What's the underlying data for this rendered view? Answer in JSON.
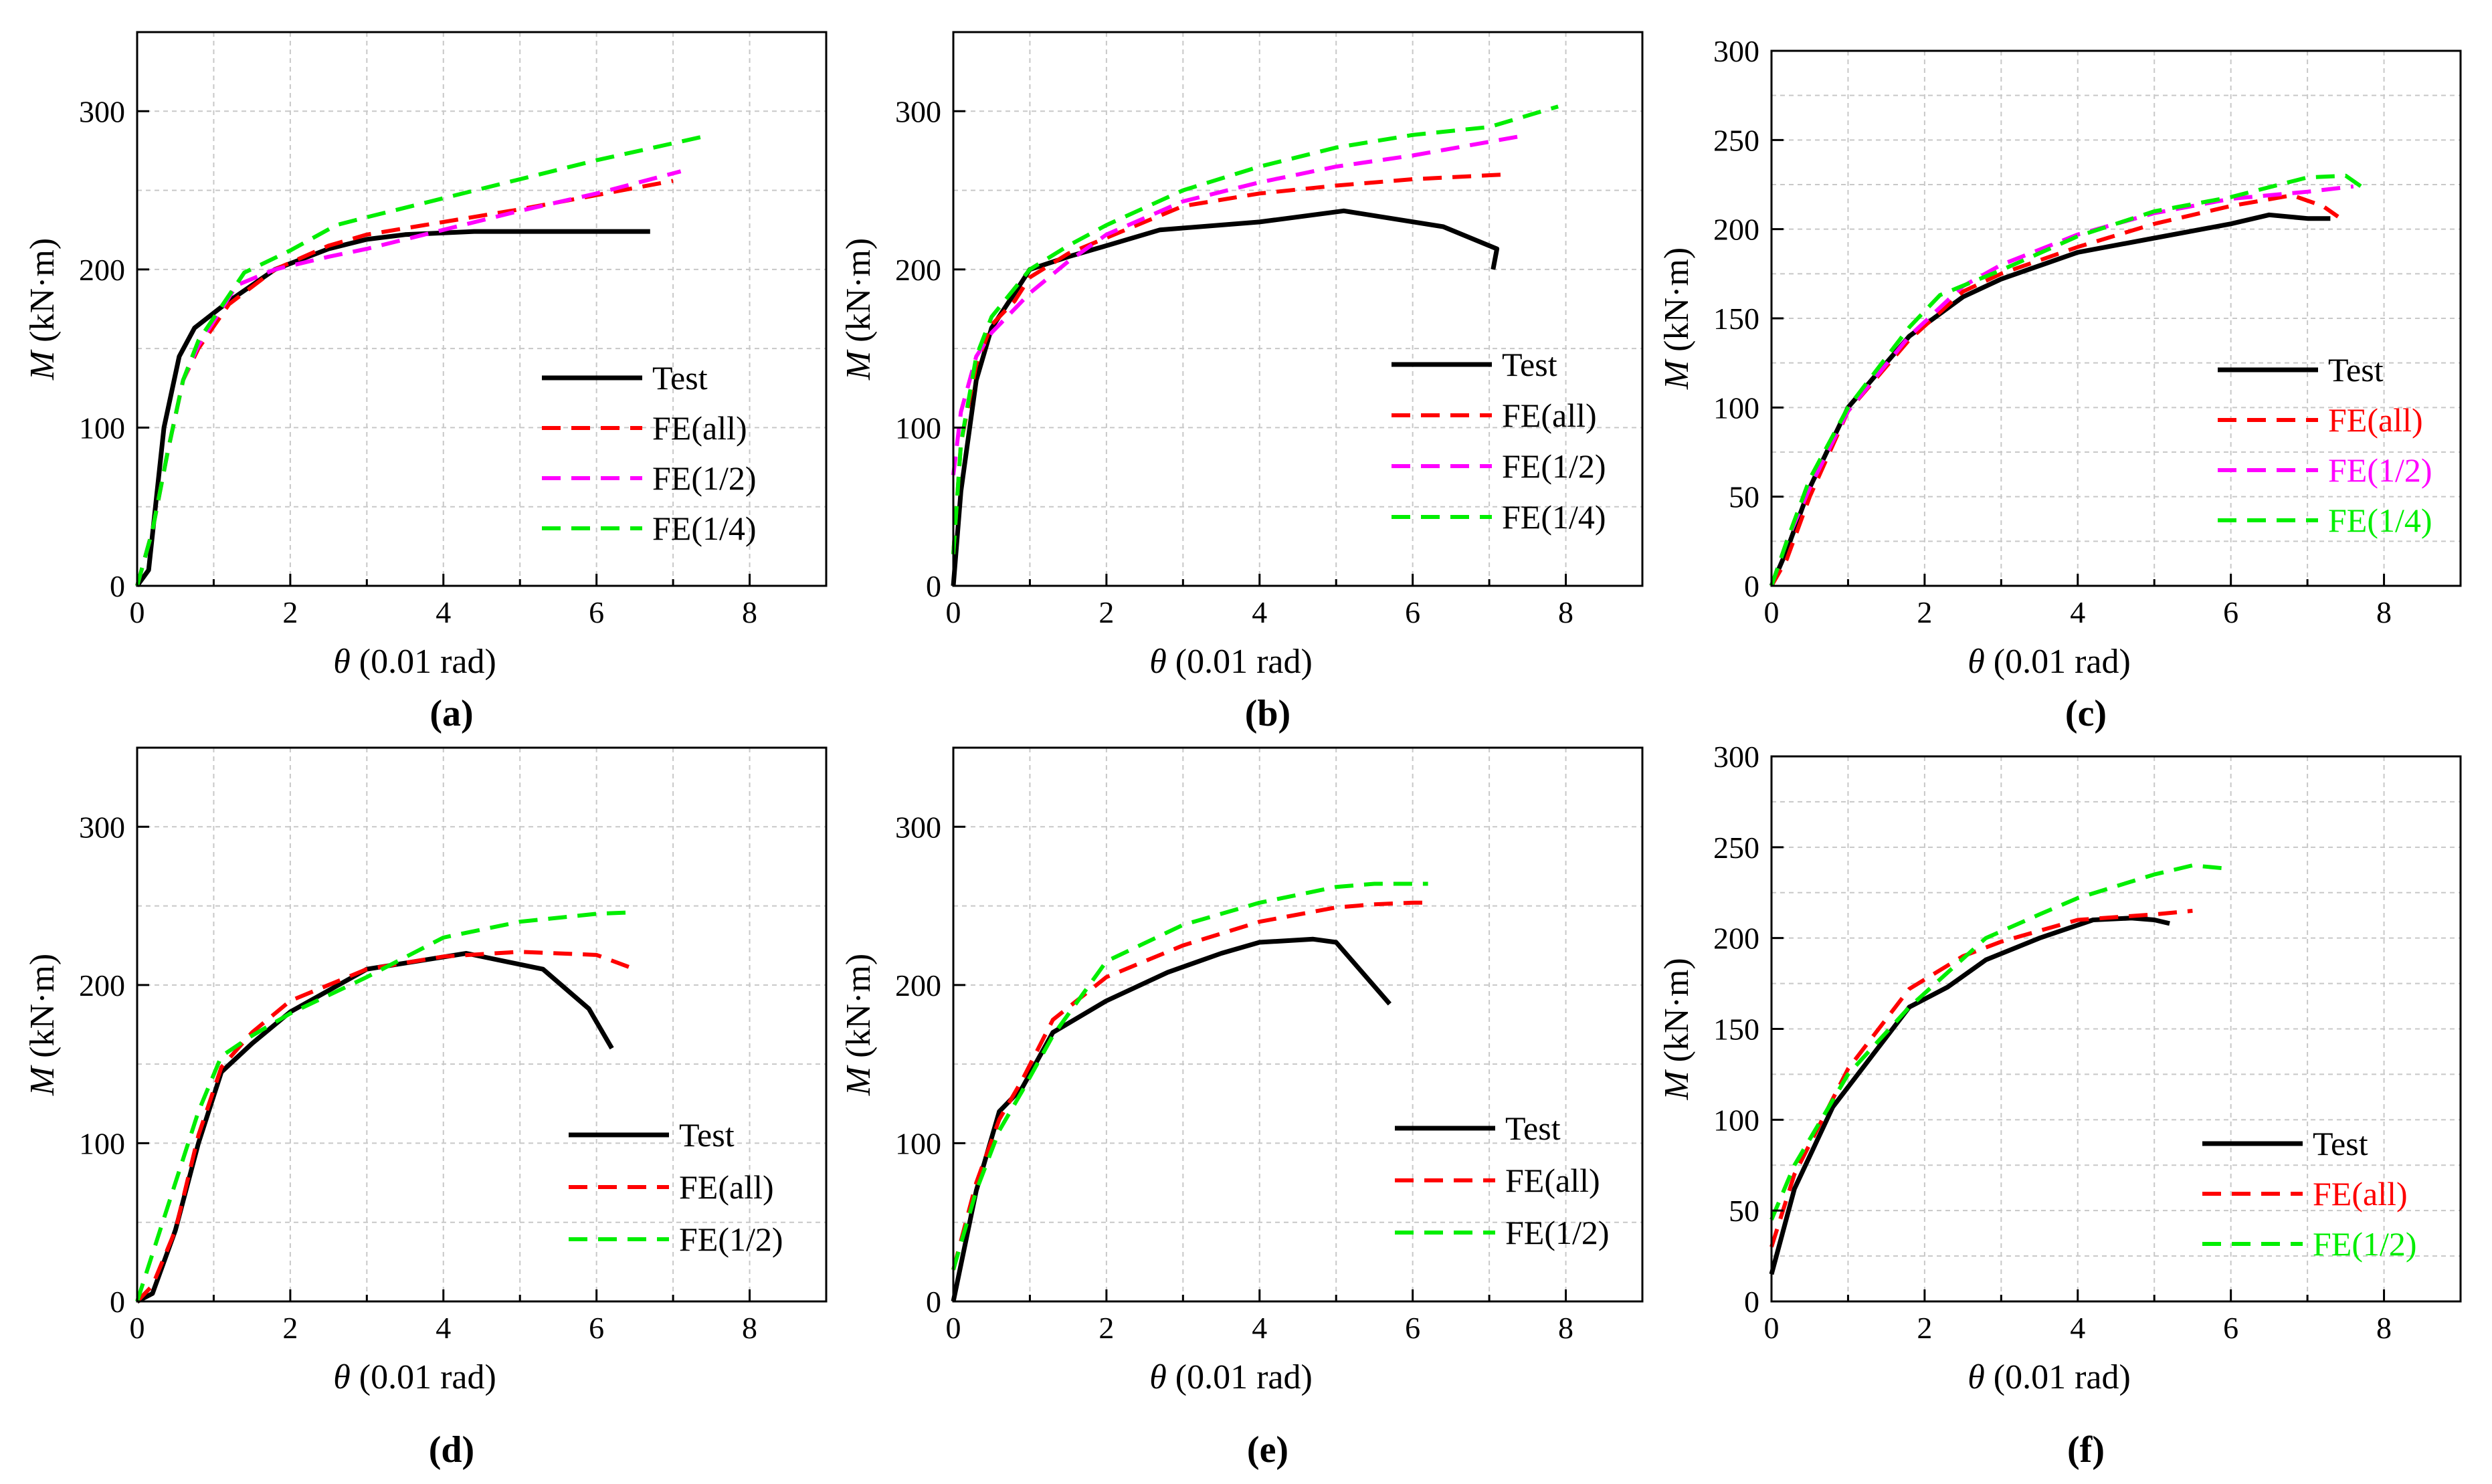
{
  "figure": {
    "xlabel_symbol": "θ",
    "xlabel_unit": "(0.01 rad)",
    "ylabel_symbol": "M",
    "ylabel_unit": "(kN·m)"
  },
  "colors": {
    "test": "#000000",
    "fe_all": "#ff0000",
    "fe_half": "#ff00ff",
    "fe_quarter": "#00ee00",
    "grid": "#c8c8c8"
  },
  "chart_data": [
    {
      "panel": "(a)",
      "type": "line",
      "xlabel": "θ (0.01 rad)",
      "ylabel": "M (kN·m)",
      "xlim": [
        0,
        9
      ],
      "ylim": [
        0,
        350
      ],
      "xticks": [
        0,
        2,
        4,
        6,
        8
      ],
      "yticks": [
        0,
        100,
        200,
        300
      ],
      "grid": true,
      "legend": "lower-right",
      "legend_colored_text": false,
      "series": [
        {
          "name": "Test",
          "style": "solid",
          "color": "#000000",
          "x": [
            0,
            0.15,
            0.35,
            0.55,
            0.75,
            1.2,
            1.8,
            2.5,
            3.0,
            3.5,
            4.4,
            6.0,
            6.7
          ],
          "y": [
            0,
            10,
            100,
            145,
            163,
            180,
            200,
            213,
            219,
            222,
            224,
            224,
            224
          ]
        },
        {
          "name": "FE(all)",
          "style": "dashed",
          "color": "#ff0000",
          "x": [
            0,
            0.2,
            0.4,
            0.6,
            0.8,
            1.2,
            1.8,
            2.5,
            3.0,
            4.0,
            5.0,
            6.0,
            7.0
          ],
          "y": [
            0,
            35,
            85,
            130,
            150,
            178,
            200,
            215,
            222,
            230,
            238,
            247,
            256
          ]
        },
        {
          "name": "FE(1/2)",
          "style": "dashed",
          "color": "#ff00ff",
          "x": [
            0,
            0.2,
            0.4,
            0.6,
            0.8,
            1.3,
            1.8,
            2.5,
            3.0,
            4.0,
            5.0,
            6.0,
            7.1
          ],
          "y": [
            0,
            35,
            85,
            130,
            152,
            190,
            200,
            208,
            213,
            225,
            237,
            248,
            262
          ]
        },
        {
          "name": "FE(1/4)",
          "style": "dashed",
          "color": "#00ee00",
          "x": [
            0,
            0.2,
            0.4,
            0.6,
            0.8,
            1.4,
            2.0,
            2.6,
            3.0,
            4.0,
            5.0,
            6.0,
            7.4
          ],
          "y": [
            0,
            35,
            85,
            130,
            155,
            198,
            212,
            228,
            233,
            245,
            257,
            269,
            284
          ]
        }
      ]
    },
    {
      "panel": "(b)",
      "type": "line",
      "xlabel": "θ (0.01 rad)",
      "ylabel": "M (kN·m)",
      "xlim": [
        0,
        9
      ],
      "ylim": [
        0,
        350
      ],
      "xticks": [
        0,
        2,
        4,
        6,
        8
      ],
      "yticks": [
        0,
        100,
        200,
        300
      ],
      "grid": true,
      "legend": "middle-right",
      "legend_colored_text": false,
      "series": [
        {
          "name": "Test",
          "style": "solid",
          "color": "#000000",
          "x": [
            0,
            0.1,
            0.3,
            0.5,
            0.8,
            1.0,
            1.5,
            2.0,
            2.7,
            4.0,
            5.1,
            6.4,
            7.1,
            7.05
          ],
          "y": [
            0,
            60,
            130,
            163,
            185,
            200,
            208,
            215,
            225,
            230,
            237,
            227,
            213,
            200
          ]
        },
        {
          "name": "FE(all)",
          "style": "dashed",
          "color": "#ff0000",
          "x": [
            0,
            0.1,
            0.3,
            0.5,
            0.8,
            1.0,
            1.5,
            2.0,
            3.0,
            4.0,
            5.0,
            6.0,
            7.2
          ],
          "y": [
            20,
            90,
            140,
            165,
            180,
            195,
            210,
            220,
            240,
            248,
            253,
            257,
            260
          ]
        },
        {
          "name": "FE(1/2)",
          "style": "dashed",
          "color": "#ff00ff",
          "x": [
            0,
            0.1,
            0.3,
            0.5,
            0.8,
            1.0,
            1.5,
            2.0,
            3.0,
            4.0,
            5.0,
            6.0,
            7.5
          ],
          "y": [
            70,
            110,
            145,
            160,
            175,
            185,
            205,
            222,
            243,
            255,
            265,
            272,
            285
          ]
        },
        {
          "name": "FE(1/4)",
          "style": "dashed",
          "color": "#00ee00",
          "x": [
            0,
            0.1,
            0.3,
            0.5,
            0.8,
            1.0,
            1.5,
            2.0,
            3.0,
            4.0,
            5.0,
            6.0,
            7.0,
            7.9
          ],
          "y": [
            20,
            90,
            145,
            170,
            188,
            200,
            215,
            228,
            250,
            265,
            277,
            285,
            290,
            303
          ]
        }
      ]
    },
    {
      "panel": "(c)",
      "type": "line",
      "xlabel": "θ (0.01 rad)",
      "ylabel": "M (kN·m)",
      "xlim": [
        0,
        9
      ],
      "ylim": [
        0,
        300
      ],
      "xticks": [
        0,
        2,
        4,
        6,
        8
      ],
      "yticks": [
        0,
        50,
        100,
        150,
        200,
        250,
        300
      ],
      "grid": true,
      "legend": "middle-right",
      "legend_colored_text": true,
      "series": [
        {
          "name": "Test",
          "style": "solid",
          "color": "#000000",
          "x": [
            0,
            0.2,
            0.5,
            1.0,
            1.8,
            2.5,
            3.0,
            4.0,
            5.0,
            6.0,
            6.5,
            7.0,
            7.3
          ],
          "y": [
            0,
            20,
            55,
            100,
            140,
            162,
            172,
            187,
            195,
            203,
            208,
            206,
            206
          ]
        },
        {
          "name": "FE(all)",
          "style": "dashed",
          "color": "#ff0000",
          "x": [
            0,
            0.2,
            0.5,
            1.0,
            1.8,
            2.5,
            3.0,
            4.0,
            5.0,
            6.0,
            6.8,
            7.2,
            7.4
          ],
          "y": [
            0,
            15,
            50,
            98,
            138,
            165,
            175,
            190,
            203,
            213,
            219,
            213,
            207
          ]
        },
        {
          "name": "FE(1/2)",
          "style": "dashed",
          "color": "#ff00ff",
          "x": [
            0,
            0.2,
            0.5,
            1.0,
            1.8,
            2.5,
            3.0,
            4.0,
            5.0,
            6.0,
            7.0,
            7.6
          ],
          "y": [
            0,
            25,
            55,
            98,
            140,
            168,
            180,
            197,
            209,
            217,
            221,
            224
          ]
        },
        {
          "name": "FE(1/4)",
          "style": "dashed",
          "color": "#00ee00",
          "x": [
            0,
            0.2,
            0.5,
            1.0,
            1.8,
            2.2,
            3.0,
            4.0,
            5.0,
            6.0,
            7.0,
            7.5,
            7.7
          ],
          "y": [
            0,
            25,
            60,
            100,
            145,
            163,
            177,
            196,
            210,
            218,
            229,
            230,
            224
          ]
        }
      ]
    },
    {
      "panel": "(d)",
      "type": "line",
      "xlabel": "θ (0.01 rad)",
      "ylabel": "M (kN·m)",
      "xlim": [
        0,
        9
      ],
      "ylim": [
        0,
        350
      ],
      "xticks": [
        0,
        2,
        4,
        6,
        8
      ],
      "yticks": [
        0,
        100,
        200,
        300
      ],
      "grid": true,
      "legend": "lower-right",
      "legend_colored_text": false,
      "series": [
        {
          "name": "Test",
          "style": "solid",
          "color": "#000000",
          "x": [
            0,
            0.2,
            0.5,
            0.8,
            1.1,
            1.5,
            2.0,
            3.0,
            4.3,
            5.3,
            5.9,
            6.2
          ],
          "y": [
            0,
            5,
            45,
            100,
            145,
            163,
            183,
            210,
            220,
            210,
            185,
            160
          ]
        },
        {
          "name": "FE(all)",
          "style": "dashed",
          "color": "#ff0000",
          "x": [
            0,
            0.2,
            0.5,
            0.8,
            1.1,
            1.5,
            2.0,
            3.0,
            4.0,
            5.0,
            6.0,
            6.5
          ],
          "y": [
            0,
            10,
            45,
            105,
            148,
            170,
            190,
            210,
            218,
            221,
            219,
            210
          ]
        },
        {
          "name": "FE(1/2)",
          "style": "dashed",
          "color": "#00ee00",
          "x": [
            0,
            0.2,
            0.5,
            0.8,
            1.1,
            1.5,
            2.0,
            3.0,
            4.0,
            5.0,
            6.0,
            6.5
          ],
          "y": [
            0,
            30,
            75,
            120,
            155,
            168,
            182,
            205,
            230,
            240,
            245,
            246
          ]
        }
      ]
    },
    {
      "panel": "(e)",
      "type": "line",
      "xlabel": "θ (0.01 rad)",
      "ylabel": "M (kN·m)",
      "xlim": [
        0,
        9
      ],
      "ylim": [
        0,
        350
      ],
      "xticks": [
        0,
        2,
        4,
        6,
        8
      ],
      "yticks": [
        0,
        100,
        200,
        300
      ],
      "grid": true,
      "legend": "lower-right",
      "legend_colored_text": false,
      "series": [
        {
          "name": "Test",
          "style": "solid",
          "color": "#000000",
          "x": [
            0,
            0.3,
            0.6,
            0.9,
            1.3,
            2.0,
            2.8,
            3.5,
            4.0,
            4.7,
            5.0,
            5.7
          ],
          "y": [
            0,
            70,
            120,
            135,
            170,
            190,
            208,
            220,
            227,
            229,
            227,
            188
          ]
        },
        {
          "name": "FE(all)",
          "style": "dashed",
          "color": "#ff0000",
          "x": [
            0,
            0.3,
            0.6,
            0.9,
            1.3,
            2.0,
            3.0,
            4.0,
            5.0,
            5.5,
            6.0,
            6.2
          ],
          "y": [
            20,
            75,
            115,
            140,
            178,
            205,
            225,
            240,
            249,
            251,
            252,
            252
          ]
        },
        {
          "name": "FE(1/2)",
          "style": "dashed",
          "color": "#00ee00",
          "x": [
            0,
            0.3,
            0.6,
            0.9,
            1.3,
            2.0,
            3.0,
            4.0,
            5.0,
            5.5,
            6.0,
            6.2
          ],
          "y": [
            20,
            70,
            108,
            133,
            168,
            215,
            238,
            252,
            262,
            264,
            264,
            264
          ]
        }
      ]
    },
    {
      "panel": "(f)",
      "type": "line",
      "xlabel": "θ (0.01 rad)",
      "ylabel": "M (kN·m)",
      "xlim": [
        0,
        9
      ],
      "ylim": [
        0,
        300
      ],
      "xticks": [
        0,
        2,
        4,
        6,
        8
      ],
      "yticks": [
        0,
        50,
        100,
        150,
        200,
        250,
        300
      ],
      "grid": true,
      "legend": "lower-right",
      "legend_colored_text": true,
      "series": [
        {
          "name": "Test",
          "style": "solid",
          "color": "#000000",
          "x": [
            0,
            0.3,
            0.8,
            1.8,
            2.3,
            2.8,
            3.5,
            4.2,
            4.7,
            5.0,
            5.2
          ],
          "y": [
            15,
            62,
            107,
            162,
            173,
            188,
            200,
            210,
            211,
            210,
            208
          ]
        },
        {
          "name": "FE(all)",
          "style": "dashed",
          "color": "#ff0000",
          "x": [
            0,
            0.3,
            1.0,
            1.8,
            2.5,
            3.0,
            4.0,
            5.0,
            5.5
          ],
          "y": [
            30,
            70,
            128,
            172,
            190,
            198,
            210,
            213,
            215
          ]
        },
        {
          "name": "FE(1/2)",
          "style": "dashed",
          "color": "#00ee00",
          "x": [
            0,
            0.3,
            1.0,
            1.8,
            2.8,
            3.5,
            4.0,
            5.0,
            5.5,
            6.0
          ],
          "y": [
            45,
            75,
            125,
            162,
            200,
            213,
            222,
            235,
            240,
            238
          ]
        }
      ]
    }
  ]
}
